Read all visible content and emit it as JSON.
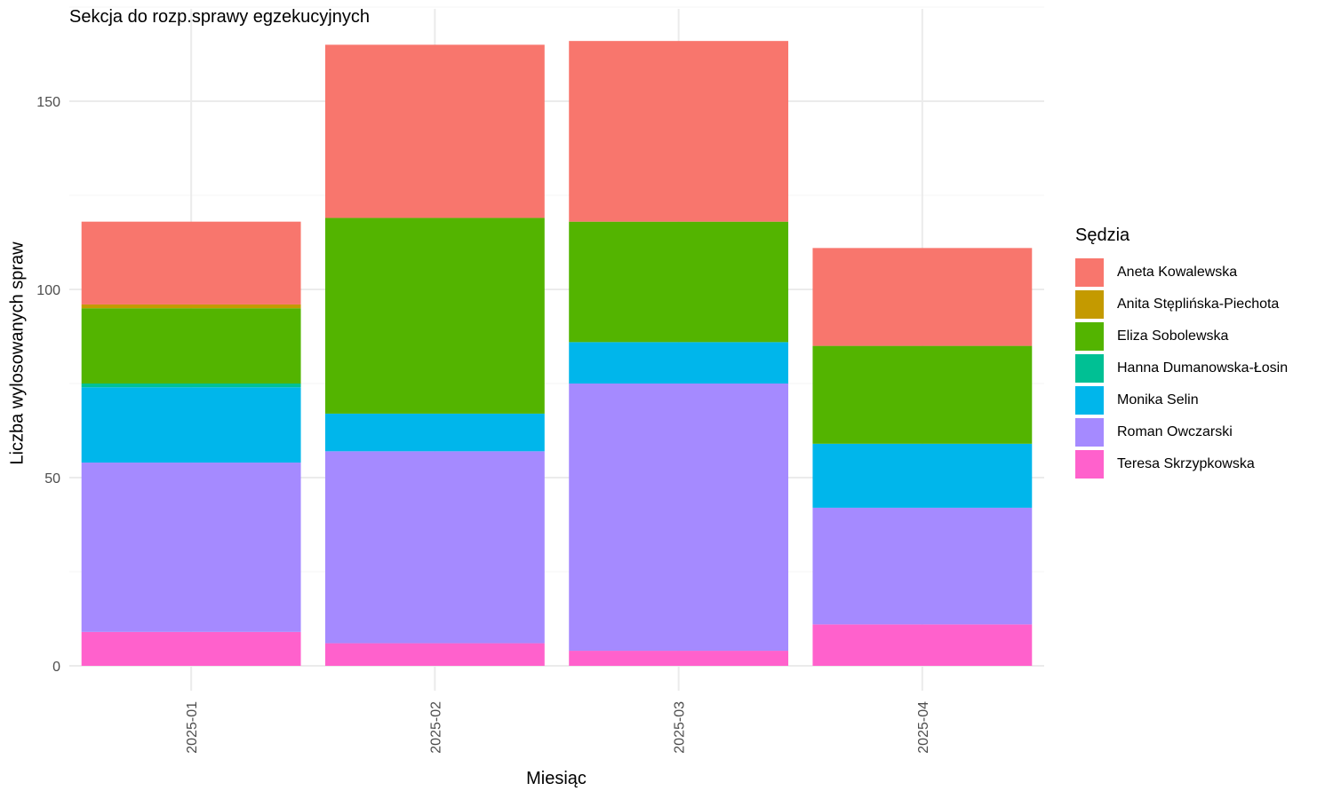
{
  "chart_data": {
    "type": "bar",
    "stacked": true,
    "title": "Sekcja do rozp.sprawy egzekucyjnych",
    "xlabel": "Miesiąc",
    "ylabel": "Liczba wylosowanych spraw",
    "categories": [
      "2025-01",
      "2025-02",
      "2025-03",
      "2025-04"
    ],
    "ylim": [
      0,
      175
    ],
    "yticks": [
      0,
      50,
      100,
      150
    ],
    "grid": true,
    "legend_title": "Sędzia",
    "legend_position": "right",
    "series": [
      {
        "name": "Teresa Skrzypkowska",
        "color": "#FF61CC",
        "values": [
          9,
          6,
          4,
          11
        ]
      },
      {
        "name": "Roman Owczarski",
        "color": "#A58AFF",
        "values": [
          45,
          51,
          71,
          31
        ]
      },
      {
        "name": "Monika Selin",
        "color": "#00B6EB",
        "values": [
          20,
          10,
          11,
          17
        ]
      },
      {
        "name": "Hanna Dumanowska-Łosin",
        "color": "#00C094",
        "values": [
          1,
          0,
          0,
          0
        ]
      },
      {
        "name": "Eliza Sobolewska",
        "color": "#53B400",
        "values": [
          20,
          52,
          32,
          26
        ]
      },
      {
        "name": "Anita Stęplińska-Piechota",
        "color": "#C49A00",
        "values": [
          1,
          0,
          0,
          0
        ]
      },
      {
        "name": "Aneta Kowalewska",
        "color": "#F8766D",
        "values": [
          22,
          46,
          48,
          26
        ]
      }
    ],
    "legend_order": [
      "Aneta Kowalewska",
      "Anita Stęplińska-Piechota",
      "Eliza Sobolewska",
      "Hanna Dumanowska-Łosin",
      "Monika Selin",
      "Roman Owczarski",
      "Teresa Skrzypkowska"
    ]
  }
}
